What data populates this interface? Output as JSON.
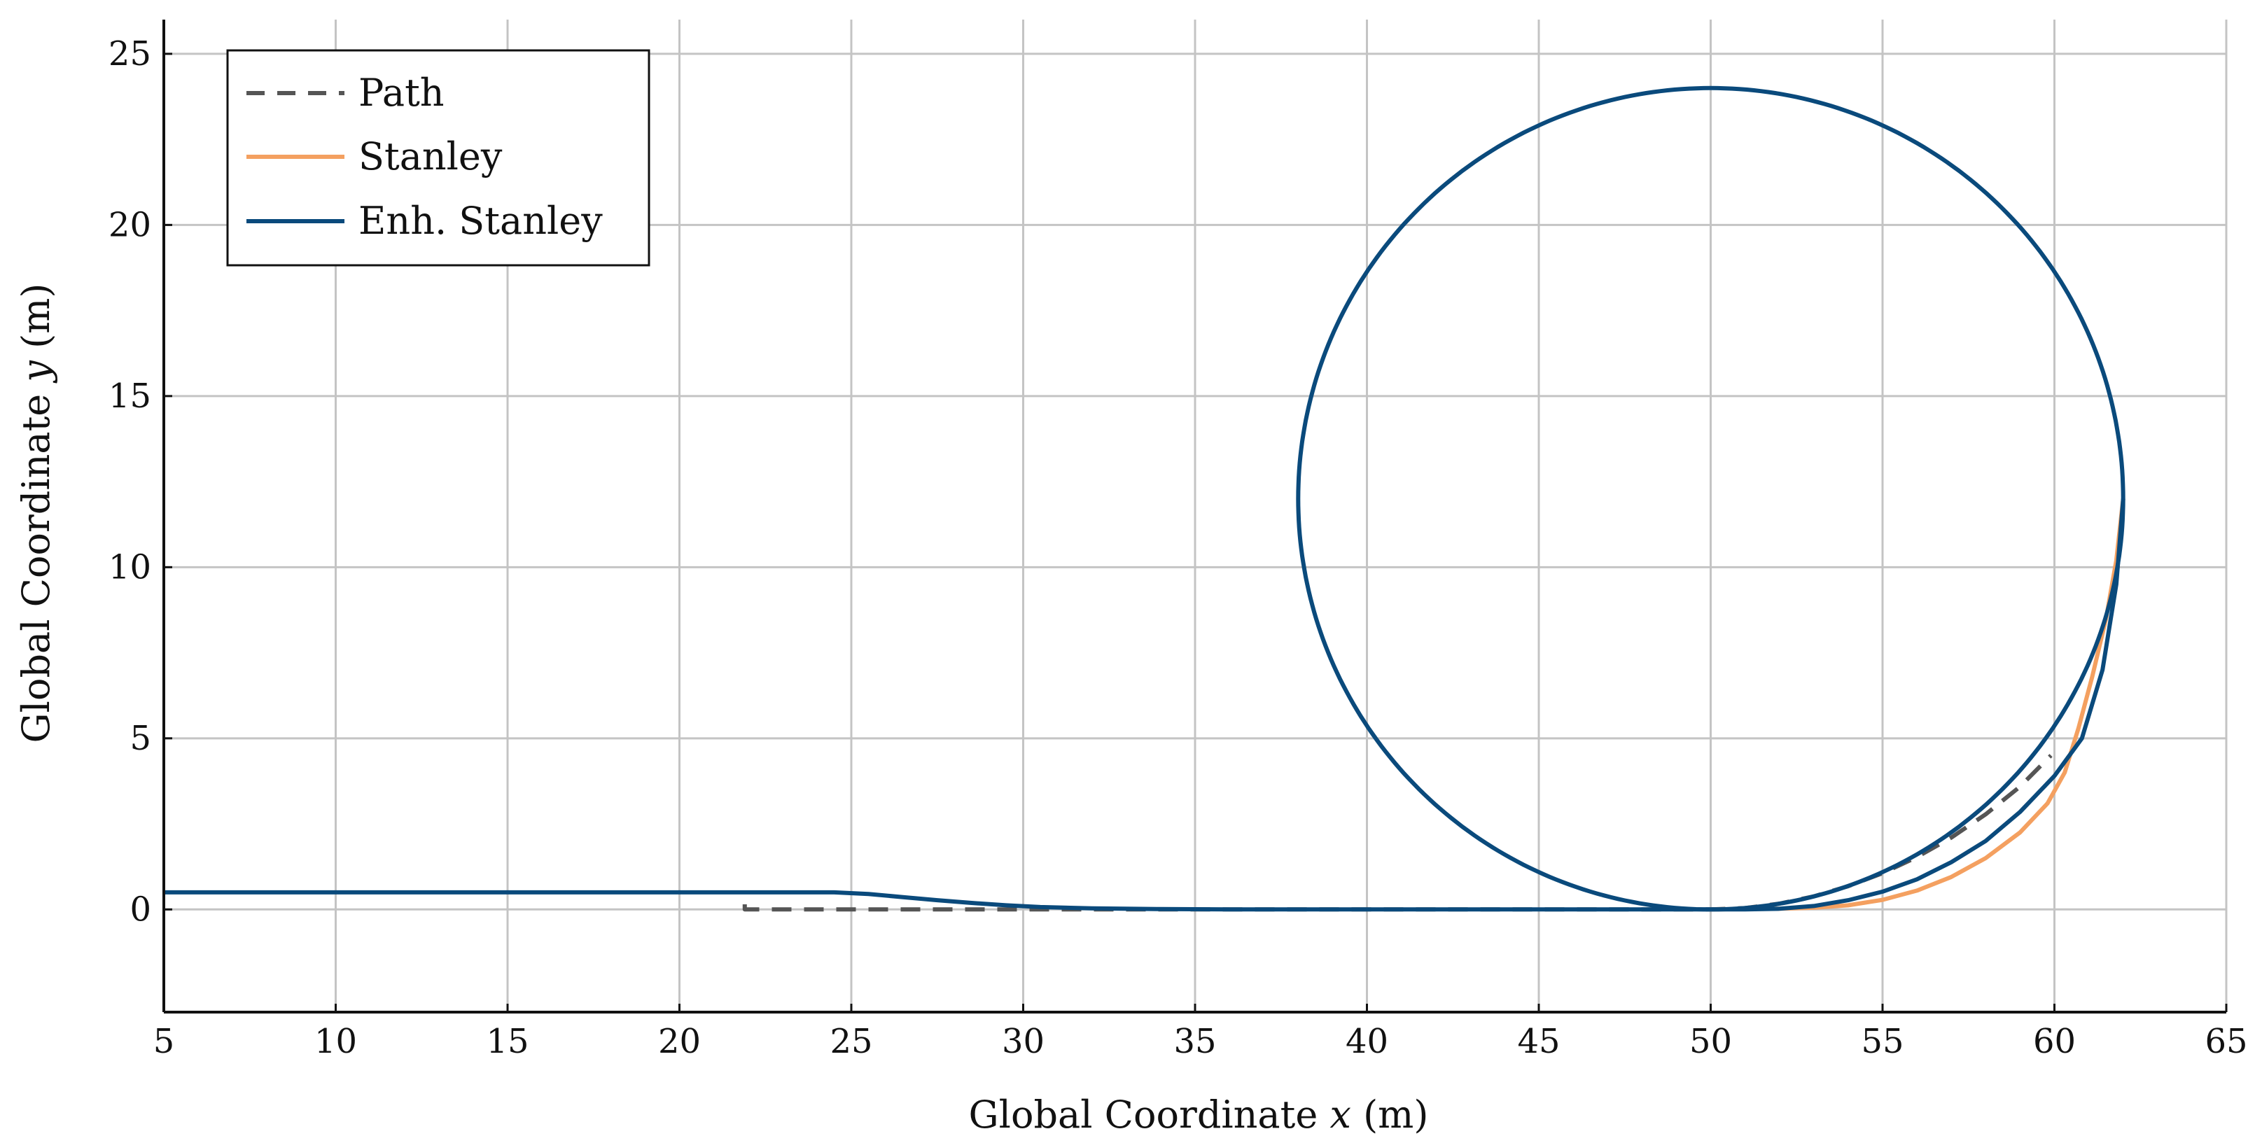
{
  "chart_data": {
    "type": "line",
    "xlabel": {
      "prefix": "Global Coordinate ",
      "var": "x",
      "unit": " (m)"
    },
    "ylabel": {
      "prefix": "Global Coordinate ",
      "var": "y",
      "unit": " (m)"
    },
    "xlim": [
      5,
      65
    ],
    "ylim": [
      -3,
      26
    ],
    "xticks": [
      5,
      10,
      15,
      20,
      25,
      30,
      35,
      40,
      45,
      50,
      55,
      60,
      65
    ],
    "yticks": [
      0,
      5,
      10,
      15,
      20,
      25
    ],
    "grid": true,
    "legend_position": "top-left",
    "series": [
      {
        "name": "Path",
        "color": "#555555",
        "dash": true,
        "points": [
          [
            21.9,
            0.15
          ],
          [
            21.9,
            0.0
          ],
          [
            22.5,
            0.0
          ],
          [
            30,
            0.0
          ],
          [
            40,
            0.0
          ],
          [
            48,
            0.0
          ],
          [
            50,
            0.0
          ],
          [
            51.0,
            0.04
          ],
          [
            52.0,
            0.17
          ],
          [
            53.0,
            0.38
          ],
          [
            54.0,
            0.68
          ],
          [
            55.0,
            1.06
          ],
          [
            56.0,
            1.53
          ],
          [
            57.0,
            2.1
          ],
          [
            58.0,
            2.78
          ],
          [
            59.0,
            3.59
          ],
          [
            59.9,
            4.5
          ]
        ]
      },
      {
        "name": "Stanley",
        "color": "#F4A060",
        "dash": false,
        "points": [
          [
            50.0,
            0.0
          ],
          [
            52.0,
            0.02
          ],
          [
            53.0,
            0.05
          ],
          [
            54.0,
            0.12
          ],
          [
            55.0,
            0.28
          ],
          [
            56.0,
            0.55
          ],
          [
            57.0,
            0.95
          ],
          [
            58.0,
            1.5
          ],
          [
            59.0,
            2.25
          ],
          [
            59.8,
            3.1
          ],
          [
            60.3,
            4.0
          ],
          [
            60.7,
            5.3
          ],
          [
            61.1,
            6.8
          ],
          [
            61.5,
            8.5
          ],
          [
            61.8,
            10.2
          ],
          [
            62.0,
            12.0
          ]
        ]
      },
      {
        "name": "Enh. Stanley",
        "color": "#0A4A7C",
        "dash": false,
        "points": [
          [
            5,
            0.5
          ],
          [
            10,
            0.5
          ],
          [
            15,
            0.5
          ],
          [
            20,
            0.5
          ],
          [
            24.5,
            0.5
          ],
          [
            25.5,
            0.45
          ],
          [
            26.5,
            0.36
          ],
          [
            27.5,
            0.27
          ],
          [
            28.5,
            0.19
          ],
          [
            29.5,
            0.12
          ],
          [
            30.5,
            0.07
          ],
          [
            32,
            0.03
          ],
          [
            34,
            0.01
          ],
          [
            36,
            0.0
          ],
          [
            48.9,
            0.0
          ],
          [
            50.0,
            0.0
          ],
          [
            51.0,
            0.0
          ],
          [
            52.0,
            0.02
          ],
          [
            53.0,
            0.1
          ],
          [
            54.0,
            0.27
          ],
          [
            55.0,
            0.52
          ],
          [
            56.0,
            0.88
          ],
          [
            57.0,
            1.38
          ],
          [
            58.0,
            2.0
          ],
          [
            59.0,
            2.85
          ],
          [
            60.0,
            3.9
          ],
          [
            60.8,
            5.0
          ],
          [
            61.4,
            7.0
          ],
          [
            61.8,
            9.5
          ],
          [
            62.0,
            12.0
          ]
        ]
      }
    ],
    "circle": {
      "series": "Enh. Stanley",
      "center": [
        50,
        12
      ],
      "radius": 12
    }
  }
}
